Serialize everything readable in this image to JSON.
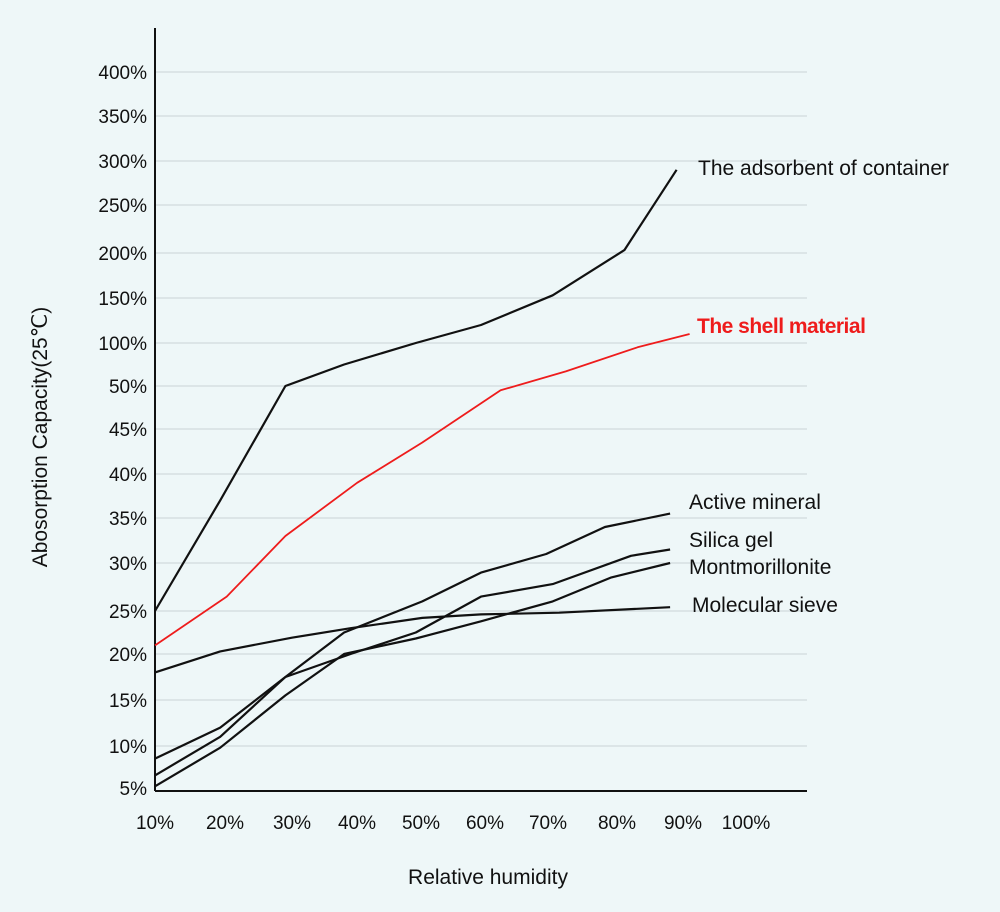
{
  "chart_data": {
    "type": "line",
    "xlabel": "Relative humidity",
    "ylabel": "Abosorption Capacity(25℃)",
    "x_ticks": [
      "10%",
      "20%",
      "30%",
      "40%",
      "50%",
      "60%",
      "70%",
      "80%",
      "90%",
      "100%"
    ],
    "y_ticks": [
      "5%",
      "10%",
      "15%",
      "20%",
      "25%",
      "30%",
      "35%",
      "40%",
      "45%",
      "50%",
      "100%",
      "150%",
      "200%",
      "250%",
      "300%",
      "350%",
      "400%"
    ],
    "grid": true,
    "legend": "inline labels at line ends (right)",
    "series": [
      {
        "name": "The adsorbent of container",
        "color": "#111111",
        "points": [
          [
            10,
            25
          ],
          [
            20,
            37
          ],
          [
            30,
            50
          ],
          [
            39,
            75
          ],
          [
            50,
            100
          ],
          [
            60,
            120
          ],
          [
            71,
            153
          ],
          [
            82,
            203
          ],
          [
            90,
            290
          ]
        ]
      },
      {
        "name": "The shell material",
        "color": "#ee1c1c",
        "points": [
          [
            10,
            21
          ],
          [
            21,
            26.5
          ],
          [
            30,
            33
          ],
          [
            41,
            39
          ],
          [
            51,
            43.5
          ],
          [
            63,
            49.5
          ],
          [
            73,
            67
          ],
          [
            84,
            95
          ],
          [
            92,
            110
          ]
        ]
      },
      {
        "name": "Active mineral",
        "color": "#111111",
        "points": [
          [
            10,
            8.5
          ],
          [
            20,
            12
          ],
          [
            30,
            17.5
          ],
          [
            39,
            22.5
          ],
          [
            51,
            26
          ],
          [
            60,
            29
          ],
          [
            70,
            31
          ],
          [
            79,
            34
          ],
          [
            89,
            35.5
          ]
        ]
      },
      {
        "name": "Silica gel",
        "color": "#111111",
        "points": [
          [
            10,
            6.5
          ],
          [
            20,
            11
          ],
          [
            30,
            17.5
          ],
          [
            40,
            20
          ],
          [
            50,
            22.5
          ],
          [
            60,
            26.5
          ],
          [
            71,
            27.8
          ],
          [
            83,
            30.8
          ],
          [
            89,
            31.5
          ]
        ]
      },
      {
        "name": "Montmorillonite",
        "color": "#111111",
        "points": [
          [
            10,
            5.2
          ],
          [
            20,
            9.8
          ],
          [
            30,
            15.5
          ],
          [
            39,
            20
          ],
          [
            50,
            21.8
          ],
          [
            60,
            23.8
          ],
          [
            71,
            26
          ],
          [
            80,
            28.5
          ],
          [
            89,
            30
          ]
        ]
      },
      {
        "name": "Molecular sieve",
        "color": "#111111",
        "points": [
          [
            10,
            18
          ],
          [
            20,
            20.3
          ],
          [
            31,
            21.9
          ],
          [
            40,
            23
          ],
          [
            51,
            24.2
          ],
          [
            60,
            24.6
          ],
          [
            72,
            24.8
          ],
          [
            89,
            25.4
          ]
        ]
      }
    ]
  }
}
